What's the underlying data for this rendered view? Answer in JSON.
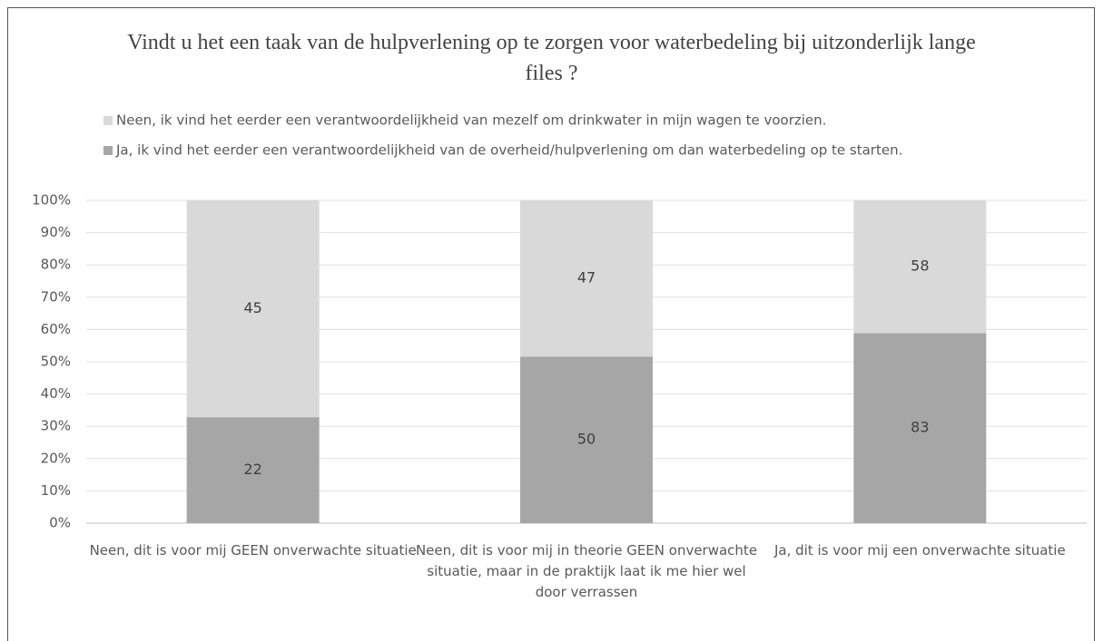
{
  "chart_data": {
    "type": "stacked_bar_100",
    "title": "Vindt u het een taak van de hulpverlening op te zorgen voor waterbedeling bij uitzonderlijk lange files ?",
    "categories": [
      "Neen, dit is voor mij GEEN onverwachte situatie",
      "Neen, dit is voor mij in theorie GEEN onverwachte situatie, maar in de praktijk laat ik me hier wel door verrassen",
      "Ja, dit is voor mij een onverwachte situatie"
    ],
    "series": [
      {
        "name": "Ja, ik vind het eerder een verantwoordelijkheid van de overheid/hulpverlening om dan waterbedeling op te starten.",
        "color": "#a6a6a6",
        "values": [
          22,
          50,
          83
        ]
      },
      {
        "name": "Neen, ik vind het eerder een verantwoordelijkheid van mezelf om drinkwater in mijn wagen te voorzien.",
        "color": "#d9d9d9",
        "values": [
          45,
          47,
          58
        ]
      }
    ],
    "ylim": [
      0,
      100
    ],
    "yticks": [
      {
        "value": 0,
        "label": "0%"
      },
      {
        "value": 10,
        "label": "10%"
      },
      {
        "value": 20,
        "label": "20%"
      },
      {
        "value": 30,
        "label": "30%"
      },
      {
        "value": 40,
        "label": "40%"
      },
      {
        "value": 50,
        "label": "50%"
      },
      {
        "value": 60,
        "label": "60%"
      },
      {
        "value": 70,
        "label": "70%"
      },
      {
        "value": 80,
        "label": "80%"
      },
      {
        "value": 90,
        "label": "90%"
      },
      {
        "value": 100,
        "label": "100%"
      }
    ],
    "grid": true,
    "legend": "top"
  }
}
